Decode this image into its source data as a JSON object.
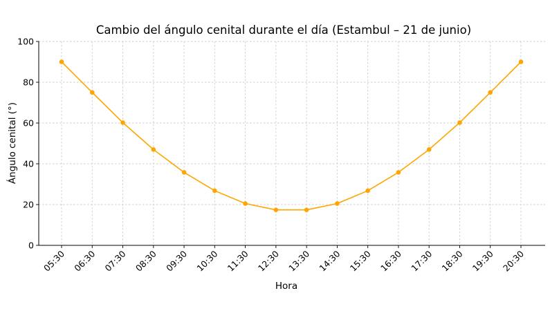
{
  "chart_data": {
    "type": "line",
    "title": "Cambio del ángulo cenital durante el día (Estambul – 21 de junio)",
    "xlabel": "Hora",
    "ylabel": "Ángulo cenital (°)",
    "categories": [
      "05:30",
      "06:30",
      "07:30",
      "08:30",
      "09:30",
      "10:30",
      "11:30",
      "12:30",
      "13:30",
      "14:30",
      "15:30",
      "16:30",
      "17:30",
      "18:30",
      "19:30",
      "20:30"
    ],
    "series": [
      {
        "name": "Ángulo cenital",
        "color": "#FFA500",
        "marker": "circle",
        "values": [
          90,
          75,
          60.2,
          47,
          35.8,
          26.8,
          20.5,
          17.4,
          17.4,
          20.5,
          26.8,
          35.8,
          47,
          60.2,
          75,
          90
        ]
      }
    ],
    "ylim": [
      0,
      100
    ],
    "yticks": [
      0,
      20,
      40,
      60,
      80,
      100
    ],
    "grid": true,
    "grid_style": "dotted",
    "legend": null,
    "xtick_rotation": 45
  }
}
